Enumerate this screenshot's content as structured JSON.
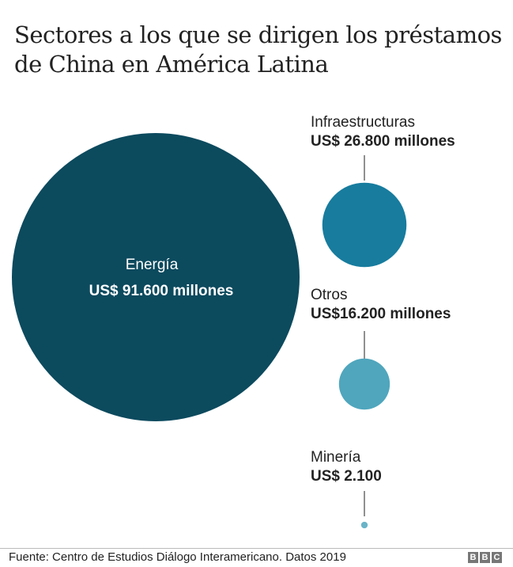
{
  "chart_data": {
    "type": "bubble",
    "title": "Sectores a los que se dirigen los préstamos de China en América Latina",
    "unit": "US$ millones",
    "series": [
      {
        "name": "Energía",
        "value": 91600,
        "label": "US$ 91.600 millones",
        "color": "#0c4a5e"
      },
      {
        "name": "Infraestructuras",
        "value": 26800,
        "label": "US$ 26.800 millones",
        "color": "#177c9e"
      },
      {
        "name": "Otros",
        "value": 16200,
        "label": "US$16.200 millones",
        "color": "#4fa6bd"
      },
      {
        "name": "Minería",
        "value": 2100,
        "label": "US$ 2.100",
        "color": "#6ab4c8"
      }
    ]
  },
  "footer": {
    "source": "Fuente: Centro de Estudios Diálogo Interamericano. Datos 2019",
    "logo": [
      "B",
      "B",
      "C"
    ]
  }
}
